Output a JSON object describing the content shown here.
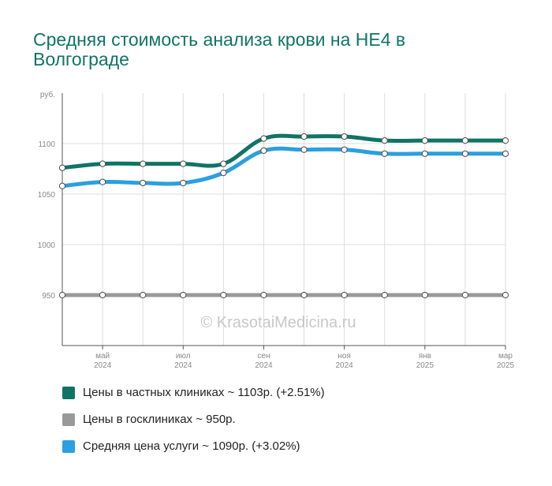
{
  "title": "Средняя стоимость анализа крови на HE4 в Волгограде",
  "watermark": "© KrasotaiMedicina.ru",
  "colors": {
    "private": "#0f7466",
    "public": "#999999",
    "average": "#2b9fe0",
    "grid": "#dddddd",
    "axis": "#555555",
    "tick_text": "#888888"
  },
  "legend": [
    {
      "label": "Цены в частных клиниках ~ 1103р. (+2.51%)",
      "color": "#0f7466"
    },
    {
      "label": "Цены в госклиниках ~ 950р.",
      "color": "#999999"
    },
    {
      "label": "Средняя цена услуги ~ 1090р. (+3.02%)",
      "color": "#2b9fe0"
    }
  ],
  "chart_data": {
    "type": "line",
    "title": "Средняя стоимость анализа крови на HE4 в Волгограде",
    "ylabel": "руб.",
    "ylim": [
      900,
      1150
    ],
    "y_ticks": [
      950,
      1000,
      1050,
      1100
    ],
    "x": [
      "2024-04",
      "2024-05",
      "2024-06",
      "2024-07",
      "2024-08",
      "2024-09",
      "2024-10",
      "2024-11",
      "2024-12",
      "2025-01",
      "2025-02",
      "2025-03"
    ],
    "x_tick_labels": [
      {
        "month": "май",
        "year": "2024",
        "index": 1
      },
      {
        "month": "июл",
        "year": "2024",
        "index": 3
      },
      {
        "month": "сен",
        "year": "2024",
        "index": 5
      },
      {
        "month": "ноя",
        "year": "2024",
        "index": 7
      },
      {
        "month": "янв",
        "year": "2025",
        "index": 9
      },
      {
        "month": "мар",
        "year": "2025",
        "index": 11
      }
    ],
    "grid": true,
    "legend_position": "bottom",
    "series": [
      {
        "name": "Цены в частных клиниках ~ 1103р. (+2.51%)",
        "key": "private",
        "values": [
          1076,
          1080,
          1080,
          1080,
          1080,
          1105,
          1107,
          1107,
          1103,
          1103,
          1103,
          1103
        ]
      },
      {
        "name": "Цены в госклиниках ~ 950р.",
        "key": "public",
        "values": [
          950,
          950,
          950,
          950,
          950,
          950,
          950,
          950,
          950,
          950,
          950,
          950
        ]
      },
      {
        "name": "Средняя цена услуги ~ 1090р. (+3.02%)",
        "key": "average",
        "values": [
          1058,
          1062,
          1061,
          1061,
          1071,
          1093,
          1094,
          1094,
          1090,
          1090,
          1090,
          1090
        ]
      }
    ]
  }
}
